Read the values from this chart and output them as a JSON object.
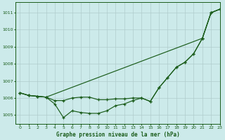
{
  "title": "Graphe pression niveau de la mer (hPa)",
  "bg_color": "#cceaea",
  "grid_color": "#b0cccc",
  "line_color": "#1a5c1a",
  "xlim": [
    -0.5,
    23
  ],
  "ylim": [
    1004.5,
    1011.6
  ],
  "yticks": [
    1005,
    1006,
    1007,
    1008,
    1009,
    1010,
    1011
  ],
  "xticks": [
    0,
    1,
    2,
    3,
    4,
    5,
    6,
    7,
    8,
    9,
    10,
    11,
    12,
    13,
    14,
    15,
    16,
    17,
    18,
    19,
    20,
    21,
    22,
    23
  ],
  "series1_x": [
    0,
    1,
    2,
    3,
    21,
    22,
    23
  ],
  "series1_y": [
    1006.3,
    1006.15,
    1006.1,
    1006.05,
    1009.5,
    1011.0,
    1011.2
  ],
  "series2_x": [
    0,
    1,
    2,
    3,
    4,
    5,
    6,
    7,
    8,
    9,
    10,
    11,
    12,
    13,
    14,
    15,
    16,
    17,
    18,
    19,
    20,
    21,
    22,
    23
  ],
  "series2_y": [
    1006.3,
    1006.15,
    1006.1,
    1006.05,
    1005.85,
    1005.85,
    1006.0,
    1006.05,
    1006.05,
    1005.9,
    1005.9,
    1005.95,
    1005.95,
    1006.0,
    1006.0,
    1005.8,
    1006.6,
    1007.2,
    1007.8,
    1008.1,
    1008.6,
    1009.5,
    1011.0,
    1011.2
  ],
  "series3_x": [
    0,
    1,
    2,
    3,
    4,
    5,
    6,
    7,
    8,
    9,
    10,
    11,
    12,
    13,
    14,
    15,
    16,
    17,
    18,
    19,
    20,
    21,
    22,
    23
  ],
  "series3_y": [
    1006.3,
    1006.15,
    1006.1,
    1006.05,
    1005.65,
    1004.85,
    1005.25,
    1005.15,
    1005.1,
    1005.1,
    1005.25,
    1005.55,
    1005.65,
    1005.85,
    1006.0,
    1005.8,
    1006.6,
    1007.2,
    1007.8,
    1008.1,
    1008.6,
    1009.5,
    1011.0,
    1011.2
  ]
}
